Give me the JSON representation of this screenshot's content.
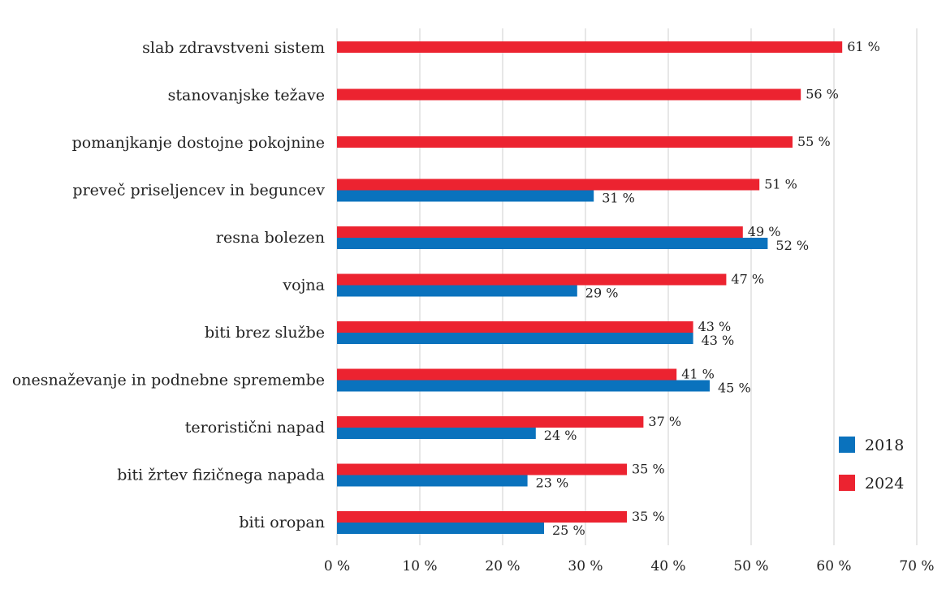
{
  "colors": {
    "s2018": "#0a72bd",
    "s2024": "#ec2330",
    "grid": "#cfcfcf",
    "text": "#222222"
  },
  "chart_data": {
    "type": "bar",
    "orientation": "horizontal",
    "title": "",
    "xlabel": "",
    "ylabel": "",
    "xlim": [
      0,
      70
    ],
    "grid": true,
    "legend_position": "right",
    "x_ticks": [
      "0 %",
      "10 %",
      "20 %",
      "30 %",
      "40 %",
      "50 %",
      "60 %",
      "70 %"
    ],
    "categories": [
      "slab zdravstveni sistem",
      "stanovanjske težave",
      "pomanjkanje dostojne pokojnine",
      "preveč priseljencev in beguncev",
      "resna bolezen",
      "vojna",
      "biti brez službe",
      "onesnaževanje in podnebne spremembe",
      "teroristični napad",
      "biti žrtev fizičnega napada",
      "biti oropan"
    ],
    "series": [
      {
        "name": "2024",
        "color": "#ec2330",
        "values": [
          61,
          56,
          55,
          51,
          49,
          47,
          43,
          41,
          37,
          35,
          35
        ],
        "labels": [
          "61 %",
          "56 %",
          "55 %",
          "51 %",
          "49 %",
          "47 %",
          "43 %",
          "41 %",
          "37 %",
          "35 %",
          "35 %"
        ]
      },
      {
        "name": "2018",
        "color": "#0a72bd",
        "values": [
          null,
          null,
          null,
          31,
          52,
          29,
          43,
          45,
          24,
          23,
          25
        ],
        "labels": [
          null,
          null,
          null,
          "31 %",
          "52 %",
          "29 %",
          "43 %",
          "45 %",
          "24 %",
          "23 %",
          "25 %"
        ]
      }
    ],
    "legend": [
      {
        "name": "2018",
        "color": "#0a72bd"
      },
      {
        "name": "2024",
        "color": "#ec2330"
      }
    ]
  }
}
